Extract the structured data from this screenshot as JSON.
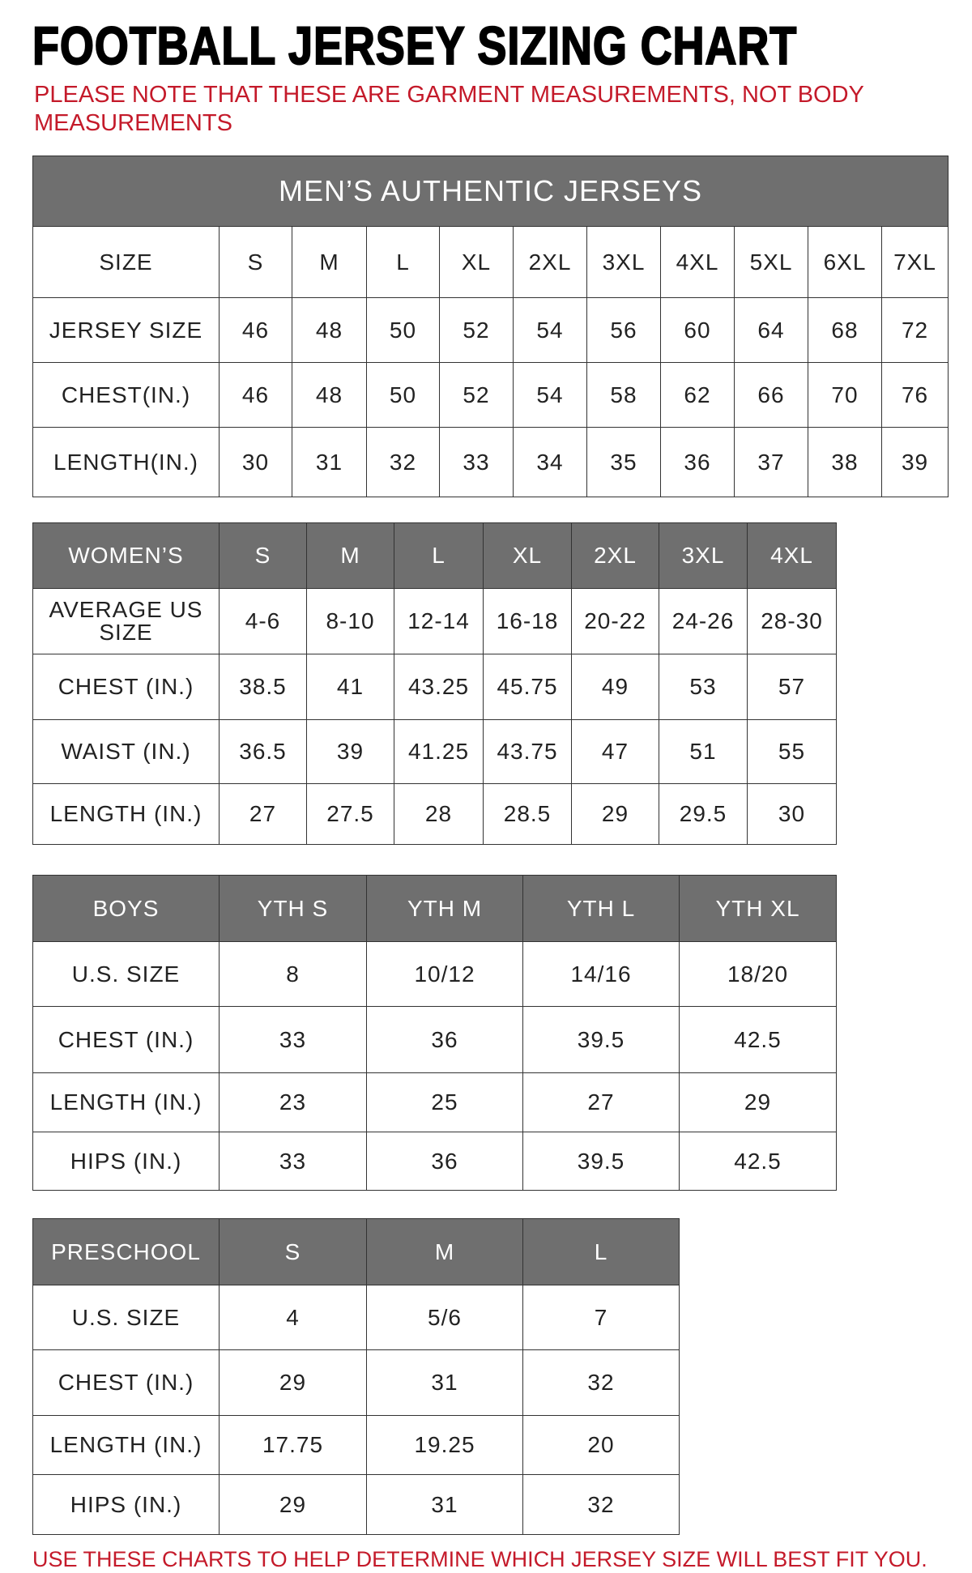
{
  "title": "FOOTBALL JERSEY SIZING CHART",
  "note": "PLEASE NOTE THAT THESE ARE GARMENT MEASUREMENTS, NOT BODY MEASUREMENTS",
  "footer": "USE THESE CHARTS TO HELP DETERMINE WHICH JERSEY SIZE WILL BEST FIT YOU.",
  "colors": {
    "accent_red": "#c41a2a",
    "header_gray": "#6f6f6f"
  },
  "tables": [
    {
      "caption": "MEN’S AUTHENTIC JERSEYS",
      "header": [
        "SIZE",
        "S",
        "M",
        "L",
        "XL",
        "2XL",
        "3XL",
        "4XL",
        "5XL",
        "6XL",
        "7XL"
      ],
      "rows": [
        [
          "JERSEY SIZE",
          "46",
          "48",
          "50",
          "52",
          "54",
          "56",
          "60",
          "64",
          "68",
          "72"
        ],
        [
          "CHEST(IN.)",
          "46",
          "48",
          "50",
          "52",
          "54",
          "58",
          "62",
          "66",
          "70",
          "76"
        ],
        [
          "LENGTH(IN.)",
          "30",
          "31",
          "32",
          "33",
          "34",
          "35",
          "36",
          "37",
          "38",
          "39"
        ]
      ]
    },
    {
      "header": [
        "WOMEN’S",
        "S",
        "M",
        "L",
        "XL",
        "2XL",
        "3XL",
        "4XL"
      ],
      "rows": [
        [
          "AVERAGE US SIZE",
          "4-6",
          "8-10",
          "12-14",
          "16-18",
          "20-22",
          "24-26",
          "28-30"
        ],
        [
          "CHEST (IN.)",
          "38.5",
          "41",
          "43.25",
          "45.75",
          "49",
          "53",
          "57"
        ],
        [
          "WAIST (IN.)",
          "36.5",
          "39",
          "41.25",
          "43.75",
          "47",
          "51",
          "55"
        ],
        [
          "LENGTH (IN.)",
          "27",
          "27.5",
          "28",
          "28.5",
          "29",
          "29.5",
          "30"
        ]
      ]
    },
    {
      "header": [
        "BOYS",
        "YTH S",
        "YTH M",
        "YTH L",
        "YTH XL"
      ],
      "rows": [
        [
          "U.S. SIZE",
          "8",
          "10/12",
          "14/16",
          "18/20"
        ],
        [
          "CHEST (IN.)",
          "33",
          "36",
          "39.5",
          "42.5"
        ],
        [
          "LENGTH (IN.)",
          "23",
          "25",
          "27",
          "29"
        ],
        [
          "HIPS (IN.)",
          "33",
          "36",
          "39.5",
          "42.5"
        ]
      ]
    },
    {
      "header": [
        "PRESCHOOL",
        "S",
        "M",
        "L"
      ],
      "rows": [
        [
          "U.S. SIZE",
          "4",
          "5/6",
          "7"
        ],
        [
          "CHEST (IN.)",
          "29",
          "31",
          "32"
        ],
        [
          "LENGTH (IN.)",
          "17.75",
          "19.25",
          "20"
        ],
        [
          "HIPS (IN.)",
          "29",
          "31",
          "32"
        ]
      ]
    }
  ]
}
